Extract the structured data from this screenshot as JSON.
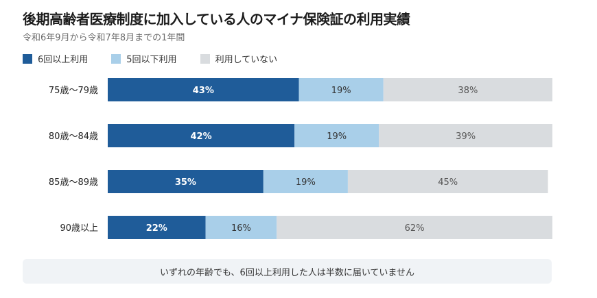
{
  "header": {
    "title": "後期高齢者医療制度に加入している人のマイナ保険証の利用実績",
    "subtitle": "令和6年9月から令和7年8月までの1年間"
  },
  "legend": [
    {
      "label": "6回以上利用",
      "color": "#1f5c99"
    },
    {
      "label": "5回以下利用",
      "color": "#a9cfe9"
    },
    {
      "label": "利用していない",
      "color": "#d9dcdf"
    }
  ],
  "chart_data": {
    "type": "bar",
    "orientation": "horizontal",
    "stacked": true,
    "categories": [
      "75歳〜79歳",
      "80歳〜84歳",
      "85歳〜89歳",
      "90歳以上"
    ],
    "series": [
      {
        "name": "6回以上利用",
        "values": [
          43,
          42,
          35,
          22
        ],
        "labels": [
          "43%",
          "42%",
          "35%",
          "22%"
        ],
        "color": "#1f5c99",
        "label_color": "#ffffff"
      },
      {
        "name": "5回以下利用",
        "values": [
          19,
          19,
          19,
          16
        ],
        "labels": [
          "19%",
          "19%",
          "19%",
          "16%"
        ],
        "color": "#a9cfe9",
        "label_color": "#333333"
      },
      {
        "name": "利用していない",
        "values": [
          38,
          39,
          45,
          62
        ],
        "labels": [
          "38%",
          "39%",
          "45%",
          "62%"
        ],
        "color": "#d9dcdf",
        "label_color": "#555555"
      }
    ],
    "xlim": [
      0,
      100
    ],
    "legend_position": "top-left",
    "grid": false
  },
  "footer": {
    "note": "いずれの年齢でも、6回以上利用した人は半数に届いていません"
  }
}
